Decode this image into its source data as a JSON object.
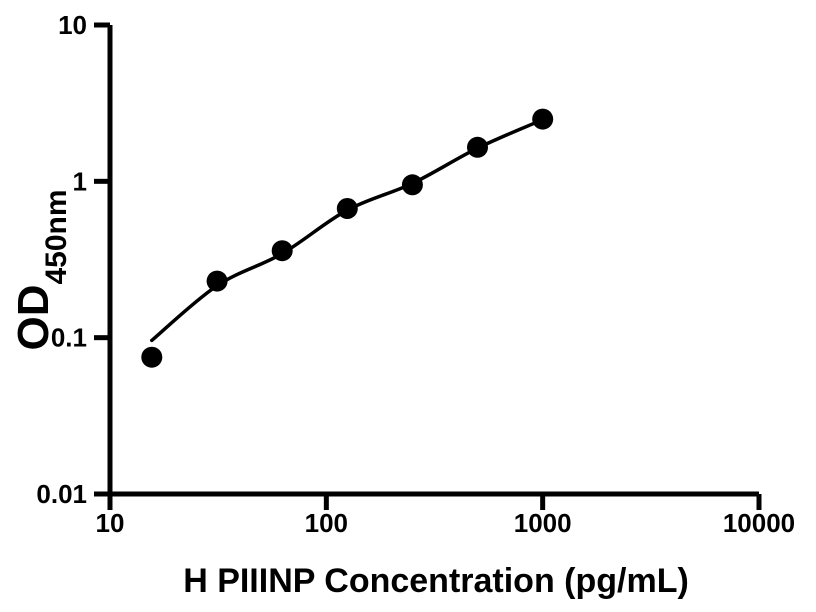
{
  "figure": {
    "background_color": "#ffffff",
    "ink_color": "#000000"
  },
  "chart_data": {
    "type": "scatter",
    "title": "",
    "xlabel": "H PIIINP Concentration (pg/mL)",
    "ylabel_main": "OD",
    "ylabel_sub": "450nm",
    "x_scale": "log",
    "y_scale": "log",
    "xlim": [
      10,
      10000
    ],
    "ylim": [
      0.01,
      10
    ],
    "x_ticks": [
      10,
      100,
      1000,
      10000
    ],
    "x_tick_labels": [
      "10",
      "100",
      "1000",
      "10000"
    ],
    "y_ticks": [
      0.01,
      0.1,
      1,
      10
    ],
    "y_tick_labels": [
      "0.01",
      "0.1",
      "1",
      "10"
    ],
    "grid": false,
    "legend": false,
    "series": [
      {
        "name": "standard-curve-points",
        "marker": "filled-circle",
        "color": "#000000",
        "points": [
          {
            "x": 15.6,
            "y": 0.075
          },
          {
            "x": 31.25,
            "y": 0.23
          },
          {
            "x": 62.5,
            "y": 0.36
          },
          {
            "x": 125,
            "y": 0.67
          },
          {
            "x": 250,
            "y": 0.95
          },
          {
            "x": 500,
            "y": 1.65
          },
          {
            "x": 1000,
            "y": 2.5
          }
        ]
      }
    ],
    "fit_curve": {
      "name": "fitted-standard-curve",
      "color": "#000000",
      "points": [
        {
          "x": 15.6,
          "y": 0.096
        },
        {
          "x": 31.25,
          "y": 0.215
        },
        {
          "x": 62.5,
          "y": 0.345
        },
        {
          "x": 125,
          "y": 0.655
        },
        {
          "x": 250,
          "y": 0.97
        },
        {
          "x": 500,
          "y": 1.63
        },
        {
          "x": 1000,
          "y": 2.48
        }
      ]
    }
  }
}
